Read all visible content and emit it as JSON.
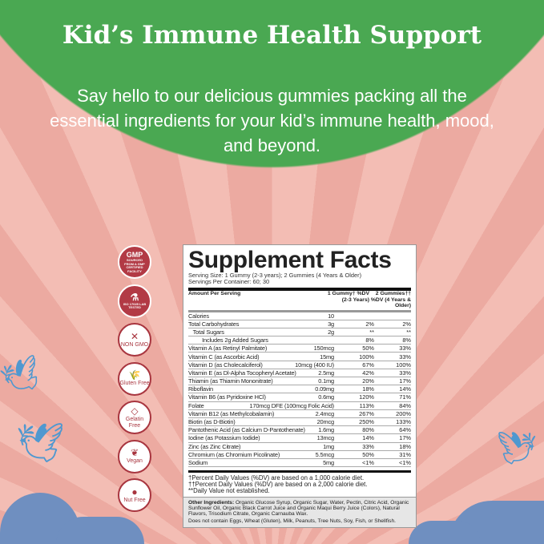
{
  "header": {
    "title": "Kid’s Immune Health Support",
    "subtitle": "Say hello to our delicious gummies packing all the essential ingredients for your kid’s immune health, mood, and beyond."
  },
  "colors": {
    "green": "#4aa852",
    "pink": "#efb1a8",
    "badge": "#a8353f"
  },
  "badges": [
    {
      "icon": "gmp-seal-icon",
      "label": "SOURCED FROM A GMP CERTIFIED FACILITY",
      "glyph": "GMP"
    },
    {
      "icon": "lab-flask-icon",
      "label": "ISO 17025 LAB TESTED",
      "glyph": "⚗"
    },
    {
      "icon": "non-gmo-icon",
      "label": "NON GMO",
      "glyph": "✕"
    },
    {
      "icon": "gluten-free-icon",
      "label": "Gluten Free",
      "glyph": "🌾"
    },
    {
      "icon": "gelatin-free-icon",
      "label": "Gelatin Free",
      "glyph": "◇"
    },
    {
      "icon": "vegan-leaf-icon",
      "label": "Vegan",
      "glyph": "❦"
    },
    {
      "icon": "nut-free-icon",
      "label": "Nut Free",
      "glyph": "●"
    }
  ],
  "facts": {
    "title": "Supplement Facts",
    "serving_size": "Serving Size: 1 Gummy (2-3 years); 2 Gummies (4 Years & Older)",
    "servings": "Servings Per Container: 60; 30",
    "columns": [
      "Amount Per Serving",
      "",
      "1 Gummy† %DV (2-3 Years)",
      "2 Gummies†† %DV (4 Years & Older)"
    ],
    "rows": [
      [
        "Calories",
        "10",
        "",
        ""
      ],
      [
        "Total Carbohydrates",
        "3g",
        "2%",
        "2%"
      ],
      [
        "   Total Sugars",
        "2g",
        "**",
        "**"
      ],
      [
        "         Includes 2g Added Sugars",
        "",
        "8%",
        "8%"
      ],
      [
        "Vitamin A (as Retinyl Palmitate)",
        "150mcg",
        "50%",
        "33%"
      ],
      [
        "Vitamin C (as Ascorbic Acid)",
        "15mg",
        "100%",
        "33%"
      ],
      [
        "Vitamin D (as Cholecalciferol)",
        "10mcg (400 IU)",
        "67%",
        "100%"
      ],
      [
        "Vitamin E (as Dl-Alpha Tocopheryl Acetate)",
        "2.5mg",
        "42%",
        "33%"
      ],
      [
        "Thiamin (as Thiamin Mononitrate)",
        "0.1mg",
        "20%",
        "17%"
      ],
      [
        "Riboflavin",
        "0.09mg",
        "18%",
        "14%"
      ],
      [
        "Vitamin B6 (as Pyridoxine HCl)",
        "0.6mg",
        "120%",
        "71%"
      ],
      [
        "Folate",
        "170mcg DFE (100mcg Folic Acid)",
        "113%",
        "84%"
      ],
      [
        "Vitamin B12 (as Methylcobalamin)",
        "2.4mcg",
        "267%",
        "200%"
      ],
      [
        "Biotin (as D-Biotin)",
        "20mcg",
        "250%",
        "133%"
      ],
      [
        "Pantothenic Acid (as Calcium D-Pantothenate)",
        "1.6mg",
        "80%",
        "64%"
      ],
      [
        "Iodine (as Potassium Iodide)",
        "13mcg",
        "14%",
        "17%"
      ],
      [
        "Zinc (as Zinc Citrate)",
        "1mg",
        "33%",
        "18%"
      ],
      [
        "Chromium (as Chromium Picolinate)",
        "5.5mcg",
        "50%",
        "31%"
      ],
      [
        "Sodium",
        "5mg",
        "<1%",
        "<1%"
      ]
    ],
    "footnotes": [
      "†Percent Daily Values (%DV) are based on a 1,000 calorie diet.",
      "††Percent Daily Values (%DV) are based on a 2,000 calorie diet.",
      "**Daily Value not established."
    ],
    "other_label": "Other Ingredients:",
    "other_text": " Organic Glucose Syrup, Organic Sugar, Water, Pectin, Citric Acid, Organic Sunflower Oil, Organic Black Carrot Juice and Organic Maqui Berry Juice (Colors), Natural Flavors, Trisodium Citrate, Organic Carnauba Wax.",
    "allergen": "Does not contain Eggs, Wheat (Gluten), Milk, Peanuts, Tree Nuts, Soy, Fish, or Shellfish."
  }
}
